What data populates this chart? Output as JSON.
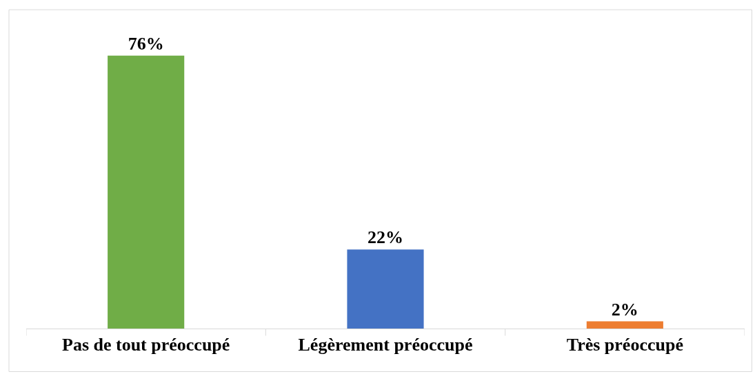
{
  "chart_data": {
    "type": "bar",
    "categories": [
      "Pas de tout préoccupé",
      "Légèrement préoccupé",
      "Très préoccupé"
    ],
    "values": [
      76,
      22,
      2
    ],
    "colors": [
      "#70ad47",
      "#4472c4",
      "#ed7d31"
    ],
    "value_labels": [
      "76%",
      "22%",
      "2%"
    ]
  }
}
